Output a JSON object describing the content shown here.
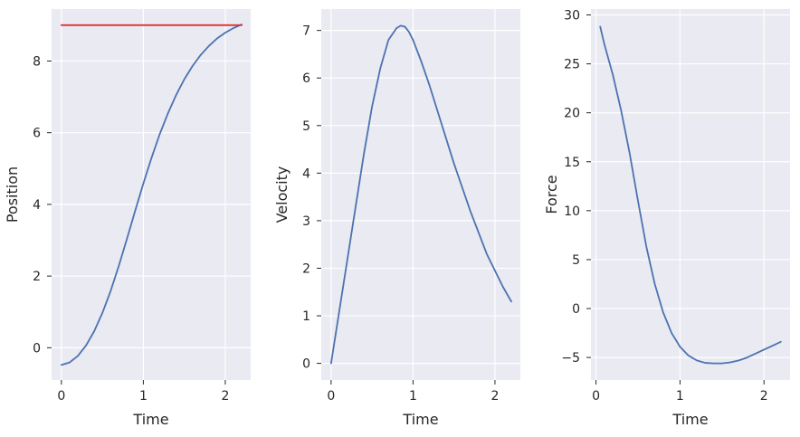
{
  "chart_data": [
    {
      "type": "line",
      "xlabel": "Time",
      "ylabel": "Position",
      "xlim": [
        -0.12,
        2.31
      ],
      "ylim": [
        -0.9,
        9.45
      ],
      "xticks": [
        0,
        1,
        2
      ],
      "xtick_labels": [
        "0",
        "1",
        "2"
      ],
      "yticks": [
        0,
        2,
        4,
        6,
        8
      ],
      "ytick_labels": [
        "0",
        "2",
        "4",
        "6",
        "8"
      ],
      "grid": true,
      "series": [
        {
          "color": "#4c72b0",
          "x": [
            0,
            0.1,
            0.2,
            0.3,
            0.4,
            0.5,
            0.6,
            0.7,
            0.8,
            0.9,
            1.0,
            1.1,
            1.2,
            1.3,
            1.4,
            1.5,
            1.6,
            1.7,
            1.8,
            1.9,
            2.0,
            2.1,
            2.2
          ],
          "y": [
            -0.48,
            -0.41,
            -0.23,
            0.06,
            0.46,
            0.97,
            1.58,
            2.28,
            3.04,
            3.82,
            4.58,
            5.3,
            5.96,
            6.54,
            7.05,
            7.49,
            7.86,
            8.17,
            8.42,
            8.63,
            8.79,
            8.92,
            9.02
          ]
        },
        {
          "color": "#dd3333",
          "x": [
            0,
            2.2
          ],
          "y": [
            9.0,
            9.0
          ]
        }
      ]
    },
    {
      "type": "line",
      "xlabel": "Time",
      "ylabel": "Velocity",
      "xlim": [
        -0.12,
        2.31
      ],
      "ylim": [
        -0.35,
        7.45
      ],
      "xticks": [
        0,
        1,
        2
      ],
      "xtick_labels": [
        "0",
        "1",
        "2"
      ],
      "yticks": [
        0,
        1,
        2,
        3,
        4,
        5,
        6,
        7
      ],
      "ytick_labels": [
        "0",
        "1",
        "2",
        "3",
        "4",
        "5",
        "6",
        "7"
      ],
      "grid": true,
      "series": [
        {
          "color": "#4c72b0",
          "x": [
            0,
            0.1,
            0.2,
            0.3,
            0.4,
            0.5,
            0.6,
            0.7,
            0.8,
            0.85,
            0.9,
            0.95,
            1.0,
            1.1,
            1.2,
            1.3,
            1.4,
            1.5,
            1.6,
            1.7,
            1.8,
            1.9,
            2.0,
            2.1,
            2.2
          ],
          "y": [
            0.0,
            1.1,
            2.2,
            3.3,
            4.4,
            5.4,
            6.2,
            6.8,
            7.05,
            7.1,
            7.08,
            6.97,
            6.8,
            6.35,
            5.85,
            5.3,
            4.75,
            4.2,
            3.7,
            3.2,
            2.75,
            2.3,
            1.95,
            1.6,
            1.3
          ]
        }
      ]
    },
    {
      "type": "line",
      "xlabel": "Time",
      "ylabel": "Force",
      "xlim": [
        -0.06,
        2.31
      ],
      "ylim": [
        -7.3,
        30.6
      ],
      "xticks": [
        0,
        1,
        2
      ],
      "xtick_labels": [
        "0",
        "1",
        "2"
      ],
      "yticks": [
        -5,
        0,
        5,
        10,
        15,
        20,
        25,
        30
      ],
      "ytick_labels": [
        "−5",
        "0",
        "5",
        "10",
        "15",
        "20",
        "25",
        "30"
      ],
      "grid": true,
      "series": [
        {
          "color": "#4c72b0",
          "x": [
            0.05,
            0.1,
            0.2,
            0.3,
            0.4,
            0.5,
            0.6,
            0.7,
            0.8,
            0.9,
            1.0,
            1.1,
            1.2,
            1.3,
            1.4,
            1.5,
            1.6,
            1.7,
            1.8,
            1.9,
            2.0,
            2.1,
            2.2
          ],
          "y": [
            28.8,
            27.0,
            23.9,
            20.2,
            15.9,
            11.0,
            6.3,
            2.5,
            -0.4,
            -2.5,
            -3.9,
            -4.8,
            -5.3,
            -5.55,
            -5.6,
            -5.6,
            -5.5,
            -5.3,
            -5.0,
            -4.6,
            -4.2,
            -3.8,
            -3.4
          ]
        }
      ]
    }
  ]
}
